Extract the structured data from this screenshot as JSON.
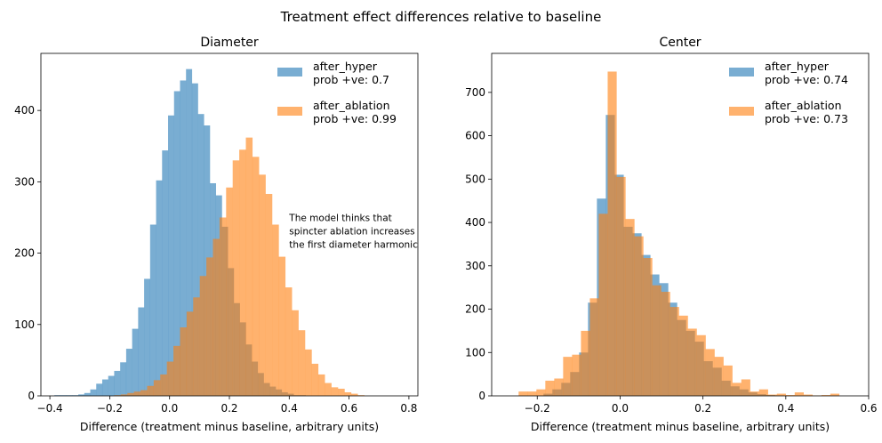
{
  "figure": {
    "suptitle": "Treatment effect differences relative to baseline"
  },
  "chart_data": [
    {
      "type": "histogram",
      "title": "Diameter",
      "xlabel": "Difference (treatment minus baseline, arbitrary units)",
      "ylabel": "",
      "xlim": [
        -0.43,
        0.83
      ],
      "ylim": [
        0,
        480
      ],
      "xticks": [
        -0.4,
        -0.2,
        0.0,
        0.2,
        0.4,
        0.6,
        0.8
      ],
      "xtick_labels": [
        "−0.4",
        "−0.2",
        "0.0",
        "0.2",
        "0.4",
        "0.6",
        "0.8"
      ],
      "yticks": [
        0,
        100,
        200,
        300,
        400
      ],
      "ytick_labels": [
        "0",
        "100",
        "200",
        "300",
        "400"
      ],
      "legend_position": "upper right",
      "annotation": {
        "lines": [
          "The model thinks that",
          "spincter ablation increases",
          "the first diameter harmonic"
        ],
        "x": 0.4,
        "y": 250
      },
      "series": [
        {
          "name": "after_hyper",
          "legend_lines": [
            "after_hyper",
            "prob +ve: 0.7"
          ],
          "color": "#1f77b4",
          "alpha": 0.6,
          "bin_start": -0.385,
          "bin_width": 0.02,
          "counts": [
            1,
            1,
            1,
            1,
            2,
            4,
            9,
            17,
            23,
            28,
            35,
            47,
            66,
            94,
            124,
            164,
            240,
            302,
            344,
            393,
            427,
            442,
            458,
            438,
            395,
            379,
            298,
            281,
            237,
            179,
            130,
            103,
            72,
            48,
            32,
            18,
            13,
            9,
            5,
            3,
            1,
            1
          ]
        },
        {
          "name": "after_ablation",
          "legend_lines": [
            "after_ablation",
            "prob +ve: 0.99"
          ],
          "color": "#ff7f0e",
          "alpha": 0.6,
          "bin_start": -0.185,
          "bin_width": 0.022,
          "counts": [
            1,
            2,
            4,
            6,
            8,
            14,
            22,
            30,
            48,
            70,
            96,
            118,
            138,
            168,
            194,
            220,
            250,
            292,
            330,
            345,
            362,
            335,
            310,
            283,
            240,
            195,
            152,
            120,
            92,
            65,
            45,
            30,
            18,
            12,
            10,
            5,
            3,
            1
          ]
        }
      ]
    },
    {
      "type": "histogram",
      "title": "Center",
      "xlabel": "Difference (treatment minus baseline, arbitrary units)",
      "ylabel": "",
      "xlim": [
        -0.31,
        0.6
      ],
      "ylim": [
        0,
        790
      ],
      "xticks": [
        -0.2,
        0.0,
        0.2,
        0.4,
        0.6
      ],
      "xtick_labels": [
        "−0.2",
        "0.0",
        "0.2",
        "0.4",
        "0.6"
      ],
      "yticks": [
        0,
        100,
        200,
        300,
        400,
        500,
        600,
        700
      ],
      "ytick_labels": [
        "0",
        "100",
        "200",
        "300",
        "400",
        "500",
        "600",
        "700"
      ],
      "legend_position": "upper right",
      "series": [
        {
          "name": "after_hyper",
          "legend_lines": [
            "after_hyper",
            "prob +ve: 0.74"
          ],
          "color": "#1f77b4",
          "alpha": 0.6,
          "bin_start": -0.185,
          "bin_width": 0.0215,
          "counts": [
            5,
            15,
            30,
            55,
            100,
            215,
            455,
            648,
            510,
            390,
            375,
            325,
            280,
            260,
            215,
            175,
            150,
            125,
            80,
            65,
            35,
            22,
            15,
            8,
            4,
            2,
            1
          ]
        },
        {
          "name": "after_ablation",
          "legend_lines": [
            "after_ablation",
            "prob +ve: 0.73"
          ],
          "color": "#ff7f0e",
          "alpha": 0.6,
          "bin_start": -0.245,
          "bin_width": 0.0215,
          "counts": [
            10,
            10,
            15,
            35,
            40,
            90,
            95,
            150,
            225,
            420,
            748,
            505,
            408,
            368,
            318,
            255,
            240,
            205,
            185,
            155,
            140,
            108,
            90,
            70,
            30,
            38,
            10,
            15,
            3,
            5,
            2,
            8,
            3,
            1,
            2,
            5
          ]
        }
      ]
    }
  ]
}
